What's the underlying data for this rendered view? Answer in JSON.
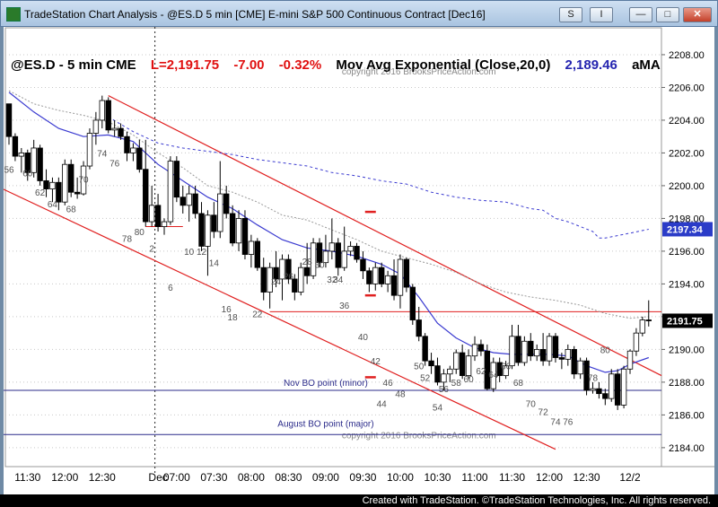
{
  "window": {
    "title": "TradeStation Chart Analysis - @ES.D 5 min [CME] E-mini S&P 500 Continuous Contract [Dec16]",
    "buttons": {
      "s": "S",
      "i": "I",
      "min": "—",
      "max": "□",
      "close": "✕"
    }
  },
  "header": {
    "symbol": "@ES.D - 5 min  CME",
    "last": "L=2,191.75",
    "change": "-7.00",
    "pct": "-0.32%",
    "indicator": "Mov Avg Exponential (Close,20,0)",
    "indicator_value": "2,189.46",
    "extra": "aMA"
  },
  "status_bar": "Created with TradeStation. ©TradeStation Technologies, Inc. All rights reserved.",
  "colors": {
    "up": "#ffffff",
    "down": "#000000",
    "ema": "#3a3ad0",
    "trend": "#e02020",
    "level": "#2b2b8a",
    "grid": "#c8c8c8",
    "bar_count": "#505050",
    "price_flag": "#000000"
  },
  "chart_data": {
    "type": "candlestick",
    "ylim": [
      2183.5,
      2208.6
    ],
    "y_ticks": [
      "2184.00",
      "2186.00",
      "2188.00",
      "2190.00",
      "2192.00",
      "2194.00",
      "2196.00",
      "2198.00",
      "2200.00",
      "2202.00",
      "2204.00",
      "2206.00",
      "2208.00"
    ],
    "x_labels": [
      {
        "bar": 3,
        "label": "11:30"
      },
      {
        "bar": 9,
        "label": "12:00"
      },
      {
        "bar": 15,
        "label": "12:30"
      },
      {
        "bar": 24,
        "label": "Dec"
      },
      {
        "bar": 27,
        "label": "07:00"
      },
      {
        "bar": 33,
        "label": "07:30"
      },
      {
        "bar": 39,
        "label": "08:00"
      },
      {
        "bar": 45,
        "label": "08:30"
      },
      {
        "bar": 51,
        "label": "09:00"
      },
      {
        "bar": 57,
        "label": "09:30"
      },
      {
        "bar": 63,
        "label": "10:00"
      },
      {
        "bar": 69,
        "label": "10:30"
      },
      {
        "bar": 75,
        "label": "11:00"
      },
      {
        "bar": 81,
        "label": "11:30"
      },
      {
        "bar": 87,
        "label": "12:00"
      },
      {
        "bar": 93,
        "label": "12:30"
      },
      {
        "bar": 100,
        "label": "12/2"
      }
    ],
    "last_price": "2191.75",
    "last_price_value": 2191.75,
    "ema_flag": "2197.34",
    "ema_flag_value": 2197.34,
    "ohlc": [
      [
        2205.0,
        2205.0,
        2202.5,
        2203.0
      ],
      [
        2203.0,
        2203.2,
        2201.5,
        2201.8
      ],
      [
        2201.8,
        2202.3,
        2200.8,
        2202.0
      ],
      [
        2202.0,
        2202.2,
        2200.3,
        2200.8
      ],
      [
        2200.8,
        2202.8,
        2200.5,
        2202.3
      ],
      [
        2202.3,
        2202.5,
        2200.0,
        2200.3
      ],
      [
        2200.3,
        2201.0,
        2199.3,
        2199.8
      ],
      [
        2199.8,
        2200.5,
        2199.0,
        2200.2
      ],
      [
        2200.2,
        2200.5,
        2198.5,
        2199.0
      ],
      [
        2199.0,
        2201.6,
        2198.8,
        2201.3
      ],
      [
        2201.3,
        2201.6,
        2199.3,
        2199.6
      ],
      [
        2199.6,
        2200.5,
        2199.2,
        2199.5
      ],
      [
        2199.5,
        2201.5,
        2199.4,
        2201.2
      ],
      [
        2201.2,
        2203.5,
        2201.0,
        2203.2
      ],
      [
        2203.2,
        2204.5,
        2202.5,
        2204.0
      ],
      [
        2204.0,
        2205.5,
        2203.5,
        2205.2
      ],
      [
        2205.2,
        2205.4,
        2203.2,
        2203.4
      ],
      [
        2203.4,
        2204.0,
        2203.0,
        2203.5
      ],
      [
        2203.5,
        2203.8,
        2202.8,
        2203.0
      ],
      [
        2203.0,
        2203.3,
        2201.5,
        2202.0
      ],
      [
        2202.0,
        2202.6,
        2201.5,
        2202.3
      ],
      [
        2202.3,
        2202.8,
        2200.8,
        2201.0
      ],
      [
        2201.0,
        2202.8,
        2197.5,
        2197.8
      ],
      [
        2197.8,
        2200.0,
        2197.5,
        2198.8
      ],
      [
        2198.8,
        2199.5,
        2197.2,
        2197.5
      ],
      [
        2197.5,
        2198.0,
        2197.0,
        2197.8
      ],
      [
        2197.8,
        2201.8,
        2197.6,
        2201.5
      ],
      [
        2201.5,
        2201.8,
        2199.0,
        2199.3
      ],
      [
        2199.3,
        2200.0,
        2198.3,
        2198.8
      ],
      [
        2198.8,
        2200.0,
        2197.8,
        2199.5
      ],
      [
        2199.5,
        2200.0,
        2198.0,
        2198.3
      ],
      [
        2198.3,
        2199.0,
        2196.0,
        2196.3
      ],
      [
        2196.3,
        2198.5,
        2194.5,
        2198.2
      ],
      [
        2198.2,
        2199.0,
        2196.8,
        2197.2
      ],
      [
        2197.2,
        2201.5,
        2196.8,
        2199.5
      ],
      [
        2199.5,
        2200.0,
        2198.0,
        2198.3
      ],
      [
        2198.3,
        2198.8,
        2196.3,
        2196.5
      ],
      [
        2196.5,
        2198.5,
        2196.0,
        2198.0
      ],
      [
        2198.0,
        2198.5,
        2195.5,
        2195.8
      ],
      [
        2195.8,
        2197.0,
        2195.0,
        2196.6
      ],
      [
        2196.6,
        2196.8,
        2194.8,
        2195.0
      ],
      [
        2195.0,
        2195.6,
        2193.0,
        2193.5
      ],
      [
        2193.5,
        2195.3,
        2192.5,
        2195.0
      ],
      [
        2195.0,
        2196.0,
        2193.8,
        2194.3
      ],
      [
        2194.3,
        2195.8,
        2193.0,
        2195.5
      ],
      [
        2195.5,
        2195.8,
        2194.0,
        2194.3
      ],
      [
        2194.3,
        2194.6,
        2193.0,
        2193.5
      ],
      [
        2193.5,
        2195.3,
        2193.3,
        2195.0
      ],
      [
        2195.0,
        2196.5,
        2194.0,
        2194.5
      ],
      [
        2194.5,
        2196.8,
        2194.3,
        2196.5
      ],
      [
        2196.5,
        2196.8,
        2195.0,
        2195.3
      ],
      [
        2195.3,
        2197.0,
        2195.0,
        2196.0
      ],
      [
        2196.0,
        2198.0,
        2195.5,
        2196.5
      ],
      [
        2196.5,
        2196.8,
        2194.5,
        2195.0
      ],
      [
        2195.0,
        2197.5,
        2194.8,
        2196.0
      ],
      [
        2196.0,
        2196.6,
        2195.7,
        2196.3
      ],
      [
        2196.3,
        2196.5,
        2195.3,
        2195.5
      ],
      [
        2195.5,
        2196.0,
        2194.3,
        2194.8
      ],
      [
        2194.8,
        2195.0,
        2193.5,
        2194.0
      ],
      [
        2194.0,
        2195.3,
        2193.6,
        2195.0
      ],
      [
        2195.0,
        2195.3,
        2193.8,
        2194.0
      ],
      [
        2194.0,
        2194.8,
        2193.5,
        2194.5
      ],
      [
        2194.5,
        2195.5,
        2193.0,
        2193.3
      ],
      [
        2193.3,
        2195.8,
        2192.5,
        2195.5
      ],
      [
        2195.5,
        2195.6,
        2193.5,
        2193.8
      ],
      [
        2193.8,
        2194.0,
        2191.5,
        2191.8
      ],
      [
        2191.8,
        2192.6,
        2190.5,
        2190.8
      ],
      [
        2190.8,
        2191.0,
        2189.0,
        2189.3
      ],
      [
        2189.3,
        2189.8,
        2188.5,
        2189.0
      ],
      [
        2189.0,
        2189.5,
        2187.8,
        2188.0
      ],
      [
        2188.0,
        2188.8,
        2187.5,
        2188.5
      ],
      [
        2188.5,
        2189.0,
        2188.0,
        2188.8
      ],
      [
        2188.8,
        2190.0,
        2188.5,
        2189.8
      ],
      [
        2189.8,
        2190.3,
        2188.2,
        2188.4
      ],
      [
        2188.4,
        2190.0,
        2188.2,
        2189.6
      ],
      [
        2189.6,
        2190.8,
        2189.3,
        2190.3
      ],
      [
        2190.3,
        2190.6,
        2189.6,
        2189.9
      ],
      [
        2189.9,
        2190.3,
        2187.5,
        2187.6
      ],
      [
        2187.6,
        2189.5,
        2187.4,
        2189.2
      ],
      [
        2189.2,
        2189.5,
        2188.0,
        2188.4
      ],
      [
        2188.4,
        2189.3,
        2188.2,
        2189.0
      ],
      [
        2189.0,
        2191.5,
        2188.8,
        2190.8
      ],
      [
        2190.8,
        2191.5,
        2189.0,
        2189.2
      ],
      [
        2189.2,
        2190.8,
        2189.0,
        2190.5
      ],
      [
        2190.5,
        2191.0,
        2189.3,
        2189.6
      ],
      [
        2189.6,
        2190.3,
        2189.3,
        2190.0
      ],
      [
        2190.0,
        2191.0,
        2189.0,
        2189.3
      ],
      [
        2189.3,
        2191.0,
        2189.0,
        2190.8
      ],
      [
        2190.8,
        2191.0,
        2189.2,
        2189.5
      ],
      [
        2189.5,
        2189.8,
        2188.8,
        2189.4
      ],
      [
        2189.4,
        2190.3,
        2189.0,
        2190.0
      ],
      [
        2190.0,
        2190.2,
        2188.2,
        2188.5
      ],
      [
        2188.5,
        2189.5,
        2188.2,
        2189.3
      ],
      [
        2189.3,
        2189.5,
        2187.2,
        2187.5
      ],
      [
        2187.5,
        2188.0,
        2187.3,
        2187.6
      ],
      [
        2187.6,
        2188.0,
        2187.0,
        2187.3
      ],
      [
        2187.3,
        2187.6,
        2186.6,
        2187.0
      ],
      [
        2187.0,
        2188.8,
        2186.8,
        2188.5
      ],
      [
        2188.5,
        2188.8,
        2186.3,
        2186.6
      ],
      [
        2186.6,
        2189.0,
        2186.4,
        2188.8
      ],
      [
        2188.8,
        2190.0,
        2188.5,
        2189.9
      ],
      [
        2189.9,
        2191.3,
        2189.6,
        2191.0
      ],
      [
        2191.0,
        2192.0,
        2190.8,
        2191.8
      ],
      [
        2191.8,
        2193.0,
        2191.4,
        2191.75
      ]
    ],
    "ema": [
      [
        0,
        2205.7
      ],
      [
        4,
        2204.5
      ],
      [
        8,
        2203.5
      ],
      [
        12,
        2203.0
      ],
      [
        16,
        2203.1
      ],
      [
        20,
        2202.7
      ],
      [
        24,
        2201.3
      ],
      [
        28,
        2200.3
      ],
      [
        32,
        2199.3
      ],
      [
        36,
        2198.6
      ],
      [
        40,
        2197.6
      ],
      [
        44,
        2196.7
      ],
      [
        48,
        2196.2
      ],
      [
        52,
        2196.0
      ],
      [
        56,
        2195.7
      ],
      [
        60,
        2195.2
      ],
      [
        63,
        2194.6
      ],
      [
        66,
        2193.2
      ],
      [
        69,
        2191.6
      ],
      [
        72,
        2190.7
      ],
      [
        75,
        2190.1
      ],
      [
        78,
        2189.8
      ],
      [
        81,
        2189.7
      ],
      [
        84,
        2189.7
      ],
      [
        87,
        2189.7
      ],
      [
        90,
        2189.6
      ],
      [
        93,
        2189.0
      ],
      [
        96,
        2188.6
      ],
      [
        98,
        2188.7
      ],
      [
        100,
        2189.1
      ],
      [
        103,
        2189.5
      ]
    ],
    "ema_dashed_upper": [
      [
        16,
        2204.2
      ],
      [
        20,
        2203.3
      ],
      [
        24,
        2202.6
      ],
      [
        28,
        2202.3
      ],
      [
        32,
        2202.1
      ],
      [
        36,
        2201.9
      ],
      [
        40,
        2201.6
      ],
      [
        44,
        2201.4
      ],
      [
        48,
        2201.2
      ],
      [
        52,
        2200.8
      ],
      [
        56,
        2200.6
      ],
      [
        60,
        2200.3
      ],
      [
        64,
        2200.1
      ],
      [
        68,
        2199.6
      ],
      [
        72,
        2199.3
      ],
      [
        76,
        2199.1
      ],
      [
        80,
        2199.0
      ],
      [
        84,
        2198.6
      ],
      [
        86,
        2198.5
      ],
      [
        88,
        2198.0
      ],
      [
        90,
        2197.8
      ],
      [
        92,
        2197.5
      ],
      [
        94,
        2197.2
      ],
      [
        95,
        2196.8
      ],
      [
        96,
        2196.8
      ],
      [
        100,
        2197.1
      ],
      [
        103,
        2197.34
      ]
    ],
    "ema_dashed_grey": [
      [
        0,
        2205.8
      ],
      [
        4,
        2205.0
      ],
      [
        8,
        2204.6
      ],
      [
        12,
        2204.3
      ],
      [
        16,
        2203.9
      ],
      [
        20,
        2203.1
      ],
      [
        24,
        2202.0
      ],
      [
        28,
        2201.1
      ],
      [
        32,
        2200.0
      ],
      [
        36,
        2199.6
      ],
      [
        40,
        2199.0
      ],
      [
        44,
        2198.2
      ],
      [
        48,
        2197.9
      ],
      [
        52,
        2197.3
      ],
      [
        56,
        2196.7
      ],
      [
        60,
        2196.0
      ],
      [
        64,
        2195.6
      ],
      [
        68,
        2195.2
      ],
      [
        72,
        2194.7
      ],
      [
        76,
        2194.0
      ],
      [
        80,
        2193.5
      ],
      [
        84,
        2193.2
      ],
      [
        88,
        2193.0
      ],
      [
        92,
        2192.7
      ],
      [
        96,
        2192.2
      ],
      [
        100,
        2191.9
      ],
      [
        103,
        2192.0
      ]
    ],
    "trend_lines": [
      {
        "x1": 16,
        "y1": 2205.5,
        "x2": 106,
        "y2": 2188.4
      },
      {
        "x1": -1,
        "y1": 2199.8,
        "x2": 88,
        "y2": 2183.9
      }
    ],
    "horizontal_lines": [
      {
        "y": 2192.3,
        "x1": 42,
        "x2": 106,
        "color": "trend"
      },
      {
        "y": 2197.5,
        "x1": 22,
        "x2": 28,
        "color": "trend"
      },
      {
        "y": 2187.5,
        "x1": -1,
        "x2": 106,
        "color": "level"
      },
      {
        "y": 2184.8,
        "x1": -1,
        "x2": 106,
        "color": "level"
      }
    ],
    "short_marks": [
      {
        "x": 58.2,
        "y": 2198.4
      },
      {
        "x": 58.2,
        "y": 2193.3
      },
      {
        "x": 58.2,
        "y": 2188.3
      }
    ],
    "session_divider_bar": 23.5,
    "annotations": [
      {
        "text": "copyright 2016 BrooksPriceAction.com",
        "x": 66,
        "y": 2207.0
      },
      {
        "text": "Nov BO point (minor)",
        "x": 51,
        "y": 2188.0
      },
      {
        "text": "August BO point (major)",
        "x": 51,
        "y": 2185.5
      },
      {
        "text": "copyright 2016 BrooksPriceAction.com",
        "x": 66,
        "y": 2184.8
      }
    ],
    "bar_counts": [
      {
        "t": "56",
        "x": 0,
        "y": 2201.0
      },
      {
        "t": "60",
        "x": 3,
        "y": 2200.8
      },
      {
        "t": "62",
        "x": 5,
        "y": 2199.6
      },
      {
        "t": "64",
        "x": 7,
        "y": 2198.9
      },
      {
        "t": "68",
        "x": 10,
        "y": 2198.6
      },
      {
        "t": "70",
        "x": 12,
        "y": 2200.4
      },
      {
        "t": "74",
        "x": 15,
        "y": 2202.0
      },
      {
        "t": "76",
        "x": 17,
        "y": 2201.4
      },
      {
        "t": "78",
        "x": 19,
        "y": 2196.8
      },
      {
        "t": "80",
        "x": 21,
        "y": 2197.2
      },
      {
        "t": "2",
        "x": 23,
        "y": 2196.2
      },
      {
        "t": "6",
        "x": 26,
        "y": 2193.8
      },
      {
        "t": "10",
        "x": 29,
        "y": 2196.0
      },
      {
        "t": "12",
        "x": 31,
        "y": 2196.0
      },
      {
        "t": "14",
        "x": 33,
        "y": 2195.3
      },
      {
        "t": "16",
        "x": 35,
        "y": 2192.5
      },
      {
        "t": "18",
        "x": 36,
        "y": 2192.0
      },
      {
        "t": "22",
        "x": 40,
        "y": 2192.2
      },
      {
        "t": "24",
        "x": 43,
        "y": 2194.2
      },
      {
        "t": "26",
        "x": 45,
        "y": 2194.5
      },
      {
        "t": "28",
        "x": 48,
        "y": 2195.4
      },
      {
        "t": "30",
        "x": 50,
        "y": 2195.2
      },
      {
        "t": "32",
        "x": 52,
        "y": 2194.3
      },
      {
        "t": "34",
        "x": 53,
        "y": 2194.3
      },
      {
        "t": "36",
        "x": 54,
        "y": 2192.7
      },
      {
        "t": "40",
        "x": 57,
        "y": 2190.8
      },
      {
        "t": "42",
        "x": 59,
        "y": 2189.3
      },
      {
        "t": "44",
        "x": 60,
        "y": 2186.7
      },
      {
        "t": "46",
        "x": 61,
        "y": 2188.0
      },
      {
        "t": "48",
        "x": 63,
        "y": 2187.3
      },
      {
        "t": "50",
        "x": 66,
        "y": 2189.0
      },
      {
        "t": "52",
        "x": 67,
        "y": 2188.3
      },
      {
        "t": "54",
        "x": 69,
        "y": 2186.5
      },
      {
        "t": "56",
        "x": 70,
        "y": 2187.6
      },
      {
        "t": "58",
        "x": 72,
        "y": 2188.0
      },
      {
        "t": "60",
        "x": 74,
        "y": 2188.2
      },
      {
        "t": "62",
        "x": 76,
        "y": 2188.7
      },
      {
        "t": "64",
        "x": 78,
        "y": 2188.5
      },
      {
        "t": "66",
        "x": 80,
        "y": 2189.0
      },
      {
        "t": "68",
        "x": 82,
        "y": 2188.0
      },
      {
        "t": "70",
        "x": 84,
        "y": 2186.7
      },
      {
        "t": "72",
        "x": 86,
        "y": 2186.2
      },
      {
        "t": "74",
        "x": 88,
        "y": 2185.6
      },
      {
        "t": "76",
        "x": 90,
        "y": 2185.6
      },
      {
        "t": "78",
        "x": 94,
        "y": 2188.3
      },
      {
        "t": "80",
        "x": 96,
        "y": 2190.0
      }
    ]
  }
}
